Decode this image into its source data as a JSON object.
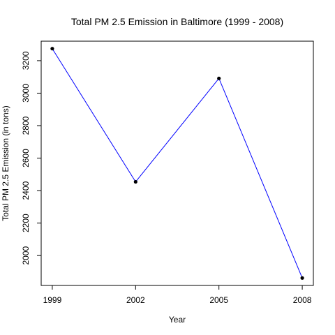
{
  "chart_data": {
    "type": "line",
    "title": "Total PM 2.5 Emission in Baltimore (1999 - 2008)",
    "xlabel": "Year",
    "ylabel": "Total PM 2.5 Emission (in tons)",
    "x": [
      1999,
      2002,
      2005,
      2008
    ],
    "series": [
      {
        "values": [
          3274,
          2454,
          3091,
          1862
        ]
      }
    ],
    "x_ticks": [
      1999,
      2002,
      2005,
      2008
    ],
    "y_ticks": [
      2000,
      2200,
      2400,
      2600,
      2800,
      3000,
      3200
    ],
    "xlim": [
      1998.6,
      2008.4
    ],
    "ylim": [
      1816,
      3320
    ],
    "line_color": "#0000ff",
    "point_color": "#000000",
    "grid": false,
    "legend": false
  }
}
